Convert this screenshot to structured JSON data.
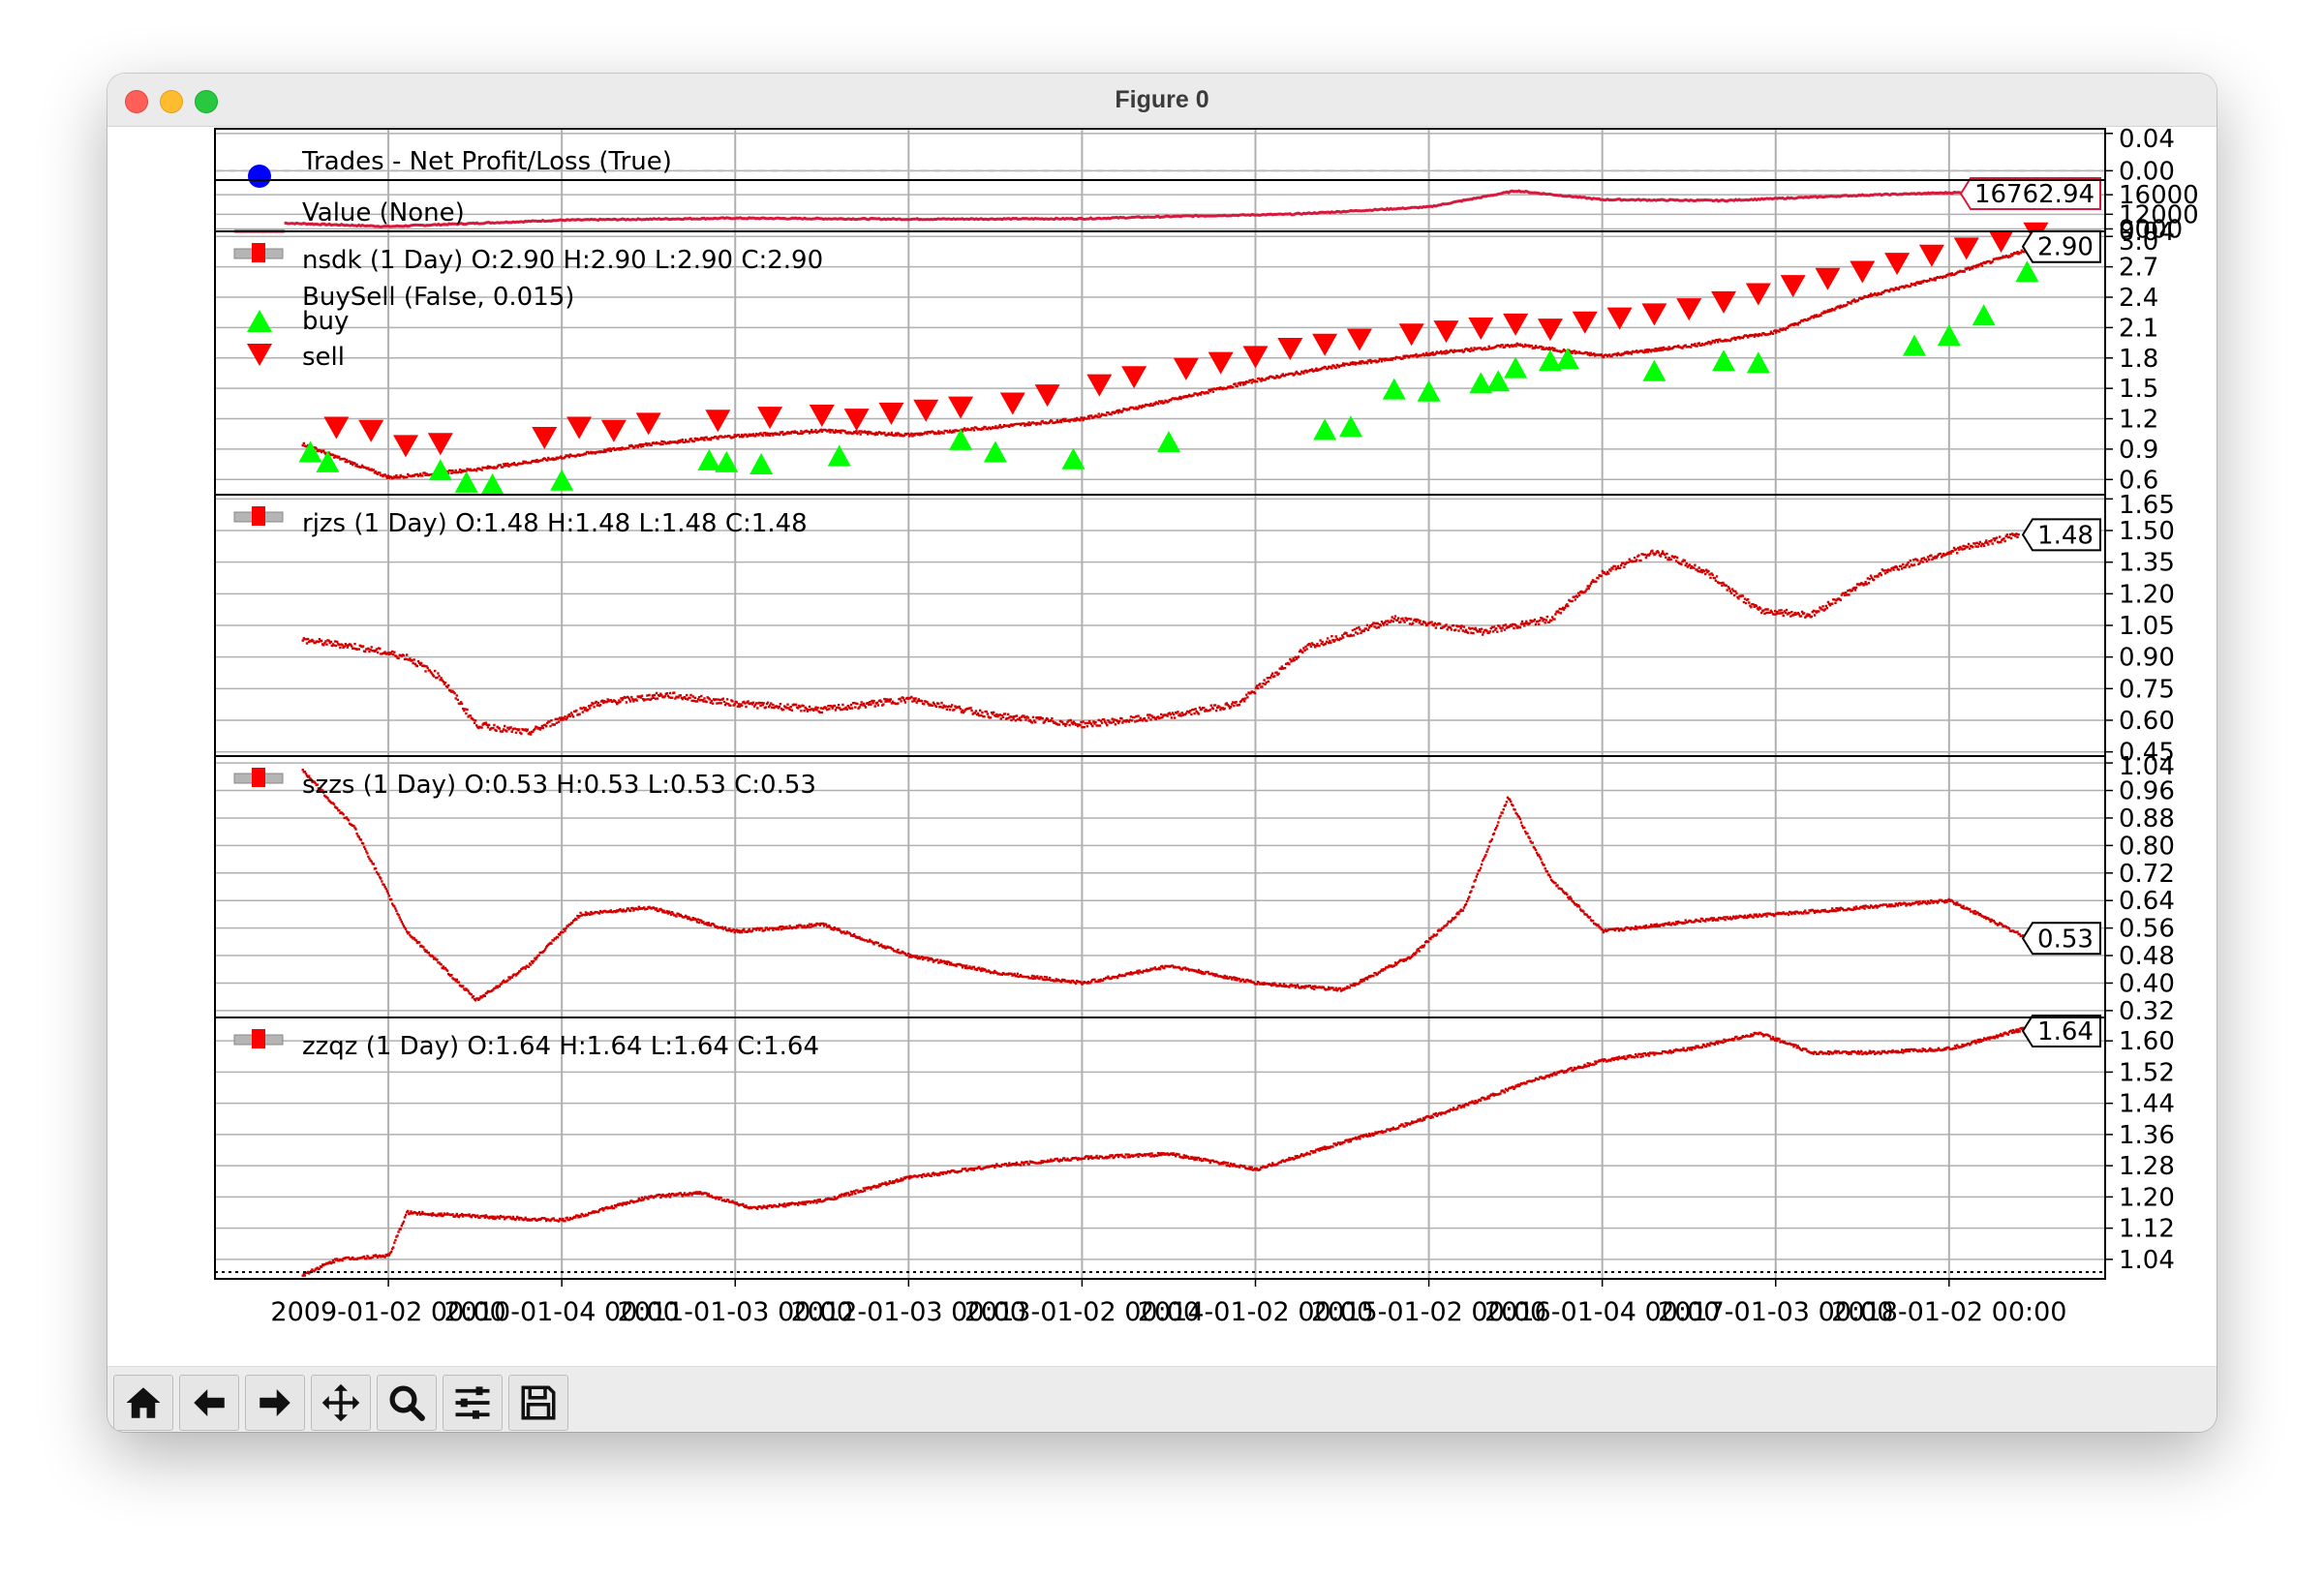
{
  "window": {
    "title": "Figure 0"
  },
  "toolbar": {
    "buttons": [
      {
        "name": "home-button",
        "icon": "home-icon"
      },
      {
        "name": "back-button",
        "icon": "arrow-left-icon"
      },
      {
        "name": "forward-button",
        "icon": "arrow-right-icon"
      },
      {
        "name": "pan-button",
        "icon": "move-icon"
      },
      {
        "name": "zoom-button",
        "icon": "magnifier-icon"
      },
      {
        "name": "configure-subplots-button",
        "icon": "sliders-icon"
      },
      {
        "name": "save-button",
        "icon": "floppy-disk-icon"
      }
    ]
  },
  "colors": {
    "price": "#d40000",
    "value": "#d7193c",
    "buy": "#00ff00",
    "sell": "#ff0000",
    "trades": "#0000ff"
  },
  "chart_data": [
    {
      "type": "line",
      "panel": "trades",
      "legend": [
        "Trades - Net Profit/Loss (True)"
      ],
      "yticks": [
        "0.04",
        "0.00"
      ],
      "ylim": [
        -0.01,
        0.045
      ]
    },
    {
      "type": "line",
      "panel": "value",
      "legend": [
        "Value (None)"
      ],
      "last_label": "16762.94",
      "yticks": [
        "0.04",
        "16000",
        "12000",
        "9000"
      ],
      "ylim": [
        8500,
        19000
      ],
      "series": [
        {
          "name": "Value (None)",
          "x": [
            2008.4,
            2009.0,
            2010.0,
            2011.0,
            2012.0,
            2013.0,
            2013.7,
            2014.2,
            2015.0,
            2015.5,
            2016.0,
            2016.7,
            2017.5,
            2018.0,
            2018.5
          ],
          "values": [
            10200,
            9500,
            10800,
            11200,
            11000,
            11100,
            11700,
            12000,
            13500,
            16800,
            15000,
            14800,
            15900,
            16400,
            16762.94
          ]
        }
      ]
    },
    {
      "type": "scatter",
      "panel": "nsdk",
      "legend": [
        "nsdk (1 Day) O:2.90 H:2.90 L:2.90 C:2.90",
        "BuySell (False, 0.015)",
        "buy",
        "sell"
      ],
      "last_label": "2.90",
      "yticks": [
        "3.0",
        "2.7",
        "2.4",
        "2.1",
        "1.8",
        "1.5",
        "1.2",
        "0.9",
        "0.6"
      ],
      "ylim": [
        0.45,
        3.05
      ],
      "series": [
        {
          "name": "nsdk",
          "x": [
            2008.5,
            2009.0,
            2009.5,
            2010.0,
            2010.5,
            2011.0,
            2011.5,
            2012.0,
            2012.5,
            2013.0,
            2013.5,
            2014.0,
            2014.5,
            2015.0,
            2015.5,
            2016.0,
            2016.5,
            2017.0,
            2017.5,
            2018.0,
            2018.5
          ],
          "values": [
            0.95,
            0.62,
            0.7,
            0.82,
            0.95,
            1.03,
            1.08,
            1.04,
            1.12,
            1.2,
            1.38,
            1.58,
            1.73,
            1.84,
            1.93,
            1.82,
            1.92,
            2.06,
            2.4,
            2.62,
            2.9
          ]
        },
        {
          "name": "buy",
          "x": [
            2008.55,
            2008.65,
            2009.3,
            2009.45,
            2009.6,
            2010.0,
            2010.85,
            2010.95,
            2011.15,
            2011.6,
            2012.3,
            2012.5,
            2012.95,
            2013.5,
            2014.4,
            2014.55,
            2014.8,
            2015.0,
            2015.3,
            2015.4,
            2015.5,
            2015.7,
            2015.8,
            2016.3,
            2016.7,
            2016.9,
            2017.8,
            2018.0,
            2018.2,
            2018.45
          ],
          "values": [
            1.0,
            0.9,
            0.82,
            0.7,
            0.68,
            0.72,
            0.92,
            0.9,
            0.88,
            0.96,
            1.12,
            1.0,
            0.93,
            1.1,
            1.22,
            1.25,
            1.62,
            1.6,
            1.68,
            1.7,
            1.83,
            1.9,
            1.92,
            1.8,
            1.9,
            1.88,
            2.05,
            2.15,
            2.35,
            2.78
          ]
        },
        {
          "name": "sell",
          "x": [
            2008.7,
            2008.9,
            2009.1,
            2009.3,
            2009.9,
            2010.1,
            2010.3,
            2010.5,
            2010.9,
            2011.2,
            2011.5,
            2011.7,
            2011.9,
            2012.1,
            2012.3,
            2012.6,
            2012.8,
            2013.1,
            2013.3,
            2013.6,
            2013.8,
            2014.0,
            2014.2,
            2014.4,
            2014.6,
            2014.9,
            2015.1,
            2015.3,
            2015.5,
            2015.7,
            2015.9,
            2016.1,
            2016.3,
            2016.5,
            2016.7,
            2016.9,
            2017.1,
            2017.3,
            2017.5,
            2017.7,
            2017.9,
            2018.1,
            2018.3,
            2018.5
          ],
          "values": [
            0.98,
            0.95,
            0.8,
            0.82,
            0.88,
            0.98,
            0.95,
            1.02,
            1.05,
            1.08,
            1.1,
            1.06,
            1.12,
            1.15,
            1.18,
            1.22,
            1.3,
            1.4,
            1.48,
            1.56,
            1.62,
            1.68,
            1.76,
            1.8,
            1.85,
            1.9,
            1.93,
            1.96,
            2.0,
            1.95,
            2.02,
            2.06,
            2.1,
            2.15,
            2.22,
            2.3,
            2.38,
            2.45,
            2.52,
            2.6,
            2.68,
            2.75,
            2.82,
            2.9
          ]
        }
      ]
    },
    {
      "type": "scatter",
      "panel": "rjzs",
      "legend": [
        "rjzs (1 Day) O:1.48 H:1.48 L:1.48 C:1.48"
      ],
      "last_label": "1.48",
      "yticks": [
        "1.65",
        "1.50",
        "1.35",
        "1.20",
        "1.05",
        "0.90",
        "0.75",
        "0.60",
        "0.45"
      ],
      "ylim": [
        0.43,
        1.67
      ],
      "series": [
        {
          "name": "rjzs",
          "x": [
            2008.5,
            2008.8,
            2009.1,
            2009.3,
            2009.5,
            2009.8,
            2010.2,
            2010.6,
            2011.0,
            2011.5,
            2012.0,
            2012.5,
            2013.0,
            2013.5,
            2013.9,
            2014.3,
            2014.8,
            2015.3,
            2015.7,
            2016.0,
            2016.3,
            2016.6,
            2016.9,
            2017.2,
            2017.6,
            2018.0,
            2018.4
          ],
          "values": [
            0.98,
            0.95,
            0.9,
            0.8,
            0.58,
            0.54,
            0.68,
            0.72,
            0.68,
            0.65,
            0.7,
            0.62,
            0.58,
            0.62,
            0.68,
            0.95,
            1.08,
            1.02,
            1.08,
            1.3,
            1.4,
            1.3,
            1.12,
            1.1,
            1.3,
            1.4,
            1.48
          ]
        }
      ]
    },
    {
      "type": "scatter",
      "panel": "szzs",
      "legend": [
        "szzs (1 Day) O:0.53 H:0.53 L:0.53 C:0.53"
      ],
      "last_label": "0.53",
      "yticks": [
        "1.04",
        "0.96",
        "0.88",
        "0.80",
        "0.72",
        "0.64",
        "0.56",
        "0.48",
        "0.40",
        "0.32"
      ],
      "ylim": [
        0.3,
        1.06
      ],
      "series": [
        {
          "name": "szzs",
          "x": [
            2008.5,
            2008.8,
            2009.1,
            2009.5,
            2009.8,
            2010.1,
            2010.5,
            2011.0,
            2011.5,
            2012.0,
            2012.5,
            2013.0,
            2013.5,
            2014.0,
            2014.5,
            2014.9,
            2015.2,
            2015.45,
            2015.7,
            2016.0,
            2016.5,
            2017.0,
            2017.5,
            2018.0,
            2018.45
          ],
          "values": [
            1.02,
            0.85,
            0.55,
            0.35,
            0.45,
            0.6,
            0.62,
            0.55,
            0.57,
            0.48,
            0.43,
            0.4,
            0.45,
            0.4,
            0.38,
            0.48,
            0.62,
            0.94,
            0.7,
            0.55,
            0.58,
            0.6,
            0.62,
            0.64,
            0.53
          ]
        }
      ]
    },
    {
      "type": "scatter",
      "panel": "zzqz",
      "legend": [
        "zzqz (1 Day) O:1.64 H:1.64 L:1.64 C:1.64"
      ],
      "last_label": "1.64",
      "yticks": [
        "1.60",
        "1.52",
        "1.44",
        "1.36",
        "1.28",
        "1.20",
        "1.12",
        "1.04"
      ],
      "ylim": [
        0.99,
        1.66
      ],
      "series": [
        {
          "name": "zzqz",
          "x": [
            2008.5,
            2008.7,
            2009.0,
            2009.1,
            2009.5,
            2010.0,
            2010.5,
            2010.8,
            2011.1,
            2011.5,
            2012.0,
            2012.5,
            2013.0,
            2013.5,
            2014.0,
            2014.5,
            2014.9,
            2015.3,
            2015.6,
            2016.0,
            2016.5,
            2016.9,
            2017.2,
            2017.6,
            2018.0,
            2018.5
          ],
          "values": [
            1.0,
            1.04,
            1.05,
            1.16,
            1.15,
            1.14,
            1.2,
            1.21,
            1.17,
            1.19,
            1.25,
            1.28,
            1.3,
            1.31,
            1.27,
            1.34,
            1.39,
            1.45,
            1.5,
            1.55,
            1.58,
            1.62,
            1.57,
            1.57,
            1.58,
            1.64
          ]
        }
      ]
    }
  ],
  "xaxis": {
    "xlim": [
      2008.0,
      2018.9
    ],
    "tick_labels": [
      "2009-01-02 00:00",
      "2010-01-04 00:00",
      "2011-01-03 00:00",
      "2012-01-03 00:00",
      "2013-01-02 00:00",
      "2014-01-02 00:00",
      "2015-01-02 00:00",
      "2016-01-04 00:00",
      "2017-01-03 00:00",
      "2018-01-02 00:00"
    ],
    "tick_values": [
      2009.0,
      2010.0,
      2011.0,
      2012.0,
      2013.0,
      2014.0,
      2015.0,
      2016.0,
      2017.0,
      2018.0
    ]
  }
}
